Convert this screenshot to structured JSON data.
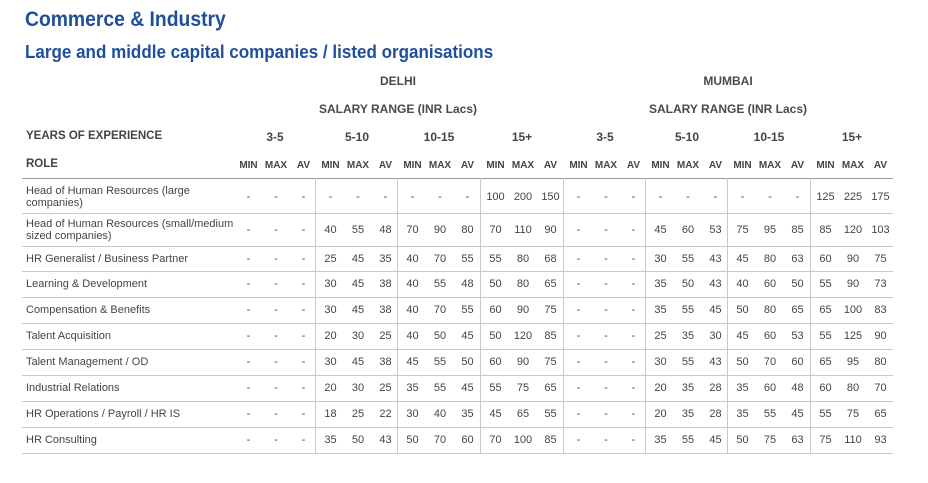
{
  "title": "Commerce & Industry",
  "subtitle": "Large and middle capital companies / listed organisations",
  "regions": [
    {
      "name": "DELHI",
      "range_label": "SALARY RANGE (INR Lacs)"
    },
    {
      "name": "MUMBAI",
      "range_label": "SALARY RANGE (INR Lacs)"
    }
  ],
  "header": {
    "experience_label": "YEARS OF EXPERIENCE",
    "role_label": "ROLE",
    "groups": [
      "3-5",
      "5-10",
      "10-15",
      "15+"
    ],
    "columns": [
      "MIN",
      "MAX",
      "AV"
    ]
  },
  "rows": [
    {
      "role": "Head of Human Resources (large companies)",
      "values": [
        "-",
        "-",
        "-",
        "-",
        "-",
        "-",
        "-",
        "-",
        "-",
        "100",
        "200",
        "150",
        "-",
        "-",
        "-",
        "-",
        "-",
        "-",
        "-",
        "-",
        "-",
        "125",
        "225",
        "175"
      ]
    },
    {
      "role": "Head of Human Resources (small/medium sized companies)",
      "values": [
        "-",
        "-",
        "-",
        "40",
        "55",
        "48",
        "70",
        "90",
        "80",
        "70",
        "110",
        "90",
        "-",
        "-",
        "-",
        "45",
        "60",
        "53",
        "75",
        "95",
        "85",
        "85",
        "120",
        "103"
      ]
    },
    {
      "role": "HR Generalist / Business Partner",
      "values": [
        "-",
        "-",
        "-",
        "25",
        "45",
        "35",
        "40",
        "70",
        "55",
        "55",
        "80",
        "68",
        "-",
        "-",
        "-",
        "30",
        "55",
        "43",
        "45",
        "80",
        "63",
        "60",
        "90",
        "75"
      ]
    },
    {
      "role": "Learning & Development",
      "values": [
        "-",
        "-",
        "-",
        "30",
        "45",
        "38",
        "40",
        "55",
        "48",
        "50",
        "80",
        "65",
        "-",
        "-",
        "-",
        "35",
        "50",
        "43",
        "40",
        "60",
        "50",
        "55",
        "90",
        "73"
      ]
    },
    {
      "role": "Compensation & Benefits",
      "values": [
        "-",
        "-",
        "-",
        "30",
        "45",
        "38",
        "40",
        "70",
        "55",
        "60",
        "90",
        "75",
        "-",
        "-",
        "-",
        "35",
        "55",
        "45",
        "50",
        "80",
        "65",
        "65",
        "100",
        "83"
      ]
    },
    {
      "role": "Talent Acquisition",
      "values": [
        "-",
        "-",
        "-",
        "20",
        "30",
        "25",
        "40",
        "50",
        "45",
        "50",
        "120",
        "85",
        "-",
        "-",
        "-",
        "25",
        "35",
        "30",
        "45",
        "60",
        "53",
        "55",
        "125",
        "90"
      ]
    },
    {
      "role": "Talent Management / OD",
      "values": [
        "-",
        "-",
        "-",
        "30",
        "45",
        "38",
        "45",
        "55",
        "50",
        "60",
        "90",
        "75",
        "-",
        "-",
        "-",
        "30",
        "55",
        "43",
        "50",
        "70",
        "60",
        "65",
        "95",
        "80"
      ]
    },
    {
      "role": "Industrial Relations",
      "values": [
        "-",
        "-",
        "-",
        "20",
        "30",
        "25",
        "35",
        "55",
        "45",
        "55",
        "75",
        "65",
        "-",
        "-",
        "-",
        "20",
        "35",
        "28",
        "35",
        "60",
        "48",
        "60",
        "80",
        "70"
      ]
    },
    {
      "role": "HR Operations / Payroll / HR IS",
      "values": [
        "-",
        "-",
        "-",
        "18",
        "25",
        "22",
        "30",
        "40",
        "35",
        "45",
        "65",
        "55",
        "-",
        "-",
        "-",
        "20",
        "35",
        "28",
        "35",
        "55",
        "45",
        "55",
        "75",
        "65"
      ]
    },
    {
      "role": "HR Consulting",
      "values": [
        "-",
        "-",
        "-",
        "35",
        "50",
        "43",
        "50",
        "70",
        "60",
        "70",
        "100",
        "85",
        "-",
        "-",
        "-",
        "35",
        "55",
        "45",
        "50",
        "75",
        "63",
        "75",
        "110",
        "93"
      ]
    }
  ]
}
